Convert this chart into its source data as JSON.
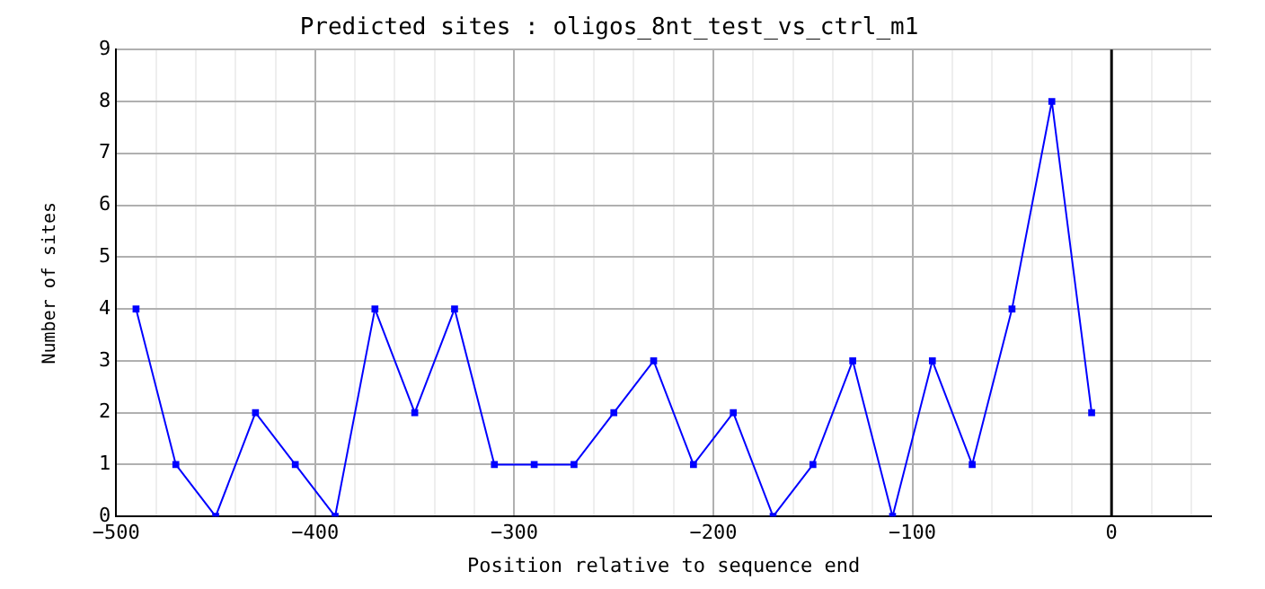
{
  "chart_data": {
    "type": "line",
    "title": "Predicted sites : oligos_8nt_test_vs_ctrl_m1",
    "xlabel": "Position relative to sequence end",
    "ylabel": "Number of sites",
    "x": [
      -490,
      -470,
      -450,
      -430,
      -410,
      -390,
      -370,
      -350,
      -330,
      -310,
      -290,
      -270,
      -250,
      -230,
      -210,
      -190,
      -170,
      -150,
      -130,
      -110,
      -90,
      -70,
      -50,
      -30,
      -10
    ],
    "series": [
      {
        "color": "#0000ff",
        "values": [
          4,
          1,
          0,
          2,
          1,
          0,
          4,
          2,
          4,
          1,
          1,
          1,
          2,
          3,
          1,
          2,
          0,
          1,
          3,
          0,
          3,
          1,
          4,
          8,
          2
        ]
      }
    ],
    "xlim": [
      -500,
      50
    ],
    "xticks": [
      -500,
      {
        "value": -480,
        "label": null
      },
      {
        "value": -460,
        "label": null
      },
      {
        "value": -440,
        "label": null
      },
      {
        "value": -420,
        "label": null
      },
      -400,
      {
        "value": -380,
        "label": null
      },
      {
        "value": -360,
        "label": null
      },
      {
        "value": -340,
        "label": null
      },
      {
        "value": -320,
        "label": null
      },
      -300,
      {
        "value": -280,
        "label": null
      },
      {
        "value": -260,
        "label": null
      },
      {
        "value": -240,
        "label": null
      },
      {
        "value": -220,
        "label": null
      },
      -200,
      {
        "value": -180,
        "label": null
      },
      {
        "value": -160,
        "label": null
      },
      {
        "value": -140,
        "label": null
      },
      {
        "value": -120,
        "label": null
      },
      -100,
      {
        "value": -80,
        "label": null
      },
      {
        "value": -60,
        "label": null
      },
      {
        "value": -40,
        "label": null
      },
      {
        "value": -20,
        "label": null
      },
      0,
      {
        "value": 20,
        "label": null
      },
      {
        "value": 40,
        "label": null
      }
    ],
    "ylim": [
      0,
      9
    ],
    "yticks": [
      0,
      1,
      2,
      3,
      4,
      5,
      6,
      7,
      8,
      9
    ],
    "ref_lines": [
      {
        "axis": "x",
        "value": 0,
        "color": "#000000"
      }
    ],
    "grid": true,
    "legend": false,
    "marker": "square",
    "line_style": "solid"
  }
}
